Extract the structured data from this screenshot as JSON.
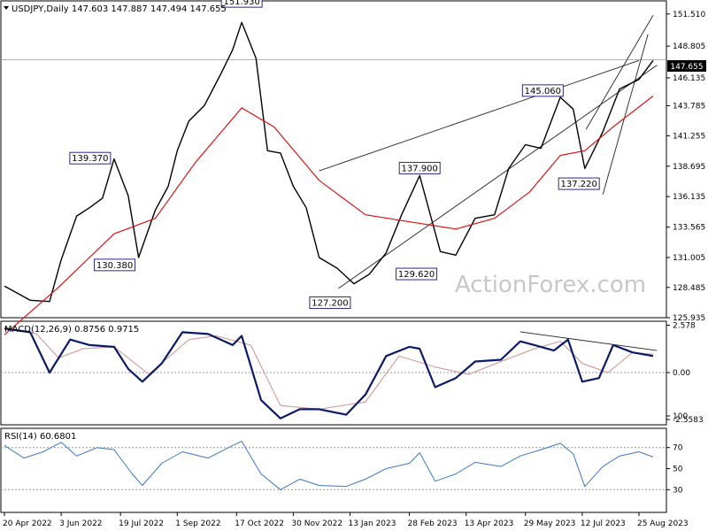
{
  "chart_data": [
    {
      "type": "line",
      "panel": "price",
      "header": "USDJPY,Daily  147.603 147.887 147.494 147.655",
      "watermark": "ActionForex.com",
      "ylim": [
        125.935,
        152.24
      ],
      "yticks": [
        "151.510",
        "148.805",
        "146.135",
        "143.785",
        "141.255",
        "138.695",
        "136.135",
        "133.565",
        "131.005",
        "128.485",
        "125.935"
      ],
      "last_price": "147.655",
      "price_line": 147.655,
      "series": [
        {
          "role": "price",
          "color": "#000000",
          "x": [
            "2022-04-20",
            "2022-05-10",
            "2022-05-25",
            "2022-06-03",
            "2022-06-15",
            "2022-06-25",
            "2022-07-05",
            "2022-07-14",
            "2022-07-25",
            "2022-08-02",
            "2022-08-15",
            "2022-08-25",
            "2022-09-01",
            "2022-09-10",
            "2022-09-22",
            "2022-10-05",
            "2022-10-14",
            "2022-10-21",
            "2022-11-01",
            "2022-11-10",
            "2022-11-20",
            "2022-11-30",
            "2022-12-10",
            "2022-12-20",
            "2023-01-03",
            "2023-01-16",
            "2023-01-28",
            "2023-02-10",
            "2023-02-22",
            "2023-03-08",
            "2023-03-24",
            "2023-04-05",
            "2023-04-20",
            "2023-05-05",
            "2023-05-16",
            "2023-05-29",
            "2023-06-10",
            "2023-06-25",
            "2023-07-05",
            "2023-07-14",
            "2023-07-28",
            "2023-08-10",
            "2023-08-25",
            "2023-09-05"
          ],
          "values": [
            128.6,
            127.4,
            127.3,
            130.8,
            134.5,
            135.2,
            136.0,
            139.3,
            136.2,
            131.0,
            135.0,
            137.0,
            140.0,
            142.5,
            143.8,
            146.5,
            148.5,
            150.8,
            147.8,
            140.0,
            139.8,
            137.0,
            135.2,
            131.0,
            130.1,
            128.8,
            129.6,
            131.4,
            134.6,
            137.9,
            131.5,
            131.2,
            134.3,
            134.6,
            138.5,
            140.5,
            140.2,
            144.5,
            143.5,
            138.5,
            141.6,
            145.2,
            146.0,
            147.6
          ]
        }
      ],
      "moving_average": {
        "color": "#dd1111",
        "x": [
          "2022-04-20",
          "2022-06-01",
          "2022-07-14",
          "2022-08-15",
          "2022-09-15",
          "2022-10-21",
          "2022-11-15",
          "2022-12-20",
          "2023-01-25",
          "2023-03-01",
          "2023-04-05",
          "2023-05-05",
          "2023-06-01",
          "2023-06-25",
          "2023-07-14",
          "2023-08-05",
          "2023-09-05"
        ],
        "values": [
          124.5,
          128.5,
          133.0,
          134.3,
          139.0,
          143.6,
          142.0,
          137.5,
          134.6,
          134.0,
          133.4,
          134.3,
          136.5,
          139.6,
          140.0,
          142.0,
          144.6
        ]
      },
      "annotations": [
        {
          "text": "151.930",
          "x": "2022-10-21",
          "y": 151.93
        },
        {
          "text": "139.370",
          "x": "2022-07-14",
          "y": 139.37
        },
        {
          "text": "130.380",
          "x": "2022-08-02",
          "y": 130.38
        },
        {
          "text": "127.200",
          "x": "2023-01-16",
          "y": 127.2
        },
        {
          "text": "137.900",
          "x": "2023-03-08",
          "y": 137.9
        },
        {
          "text": "129.620",
          "x": "2023-03-24",
          "y": 129.62
        },
        {
          "text": "145.060",
          "x": "2023-06-30",
          "y": 145.06
        },
        {
          "text": "137.220",
          "x": "2023-07-28",
          "y": 137.22
        }
      ]
    },
    {
      "type": "line",
      "panel": "macd",
      "header": "MACD(12,26,9) 0.8756 0.9715",
      "ylim": [
        -2.8,
        2.7
      ],
      "yticks": [
        "2.578",
        "0.00",
        "-2.5583"
      ],
      "zero_line": 0,
      "series": [
        {
          "role": "macd",
          "color": "#0a1a6e",
          "x": [
            "2022-04-20",
            "2022-05-10",
            "2022-05-25",
            "2022-06-10",
            "2022-06-25",
            "2022-07-14",
            "2022-07-25",
            "2022-08-05",
            "2022-08-20",
            "2022-09-05",
            "2022-09-25",
            "2022-10-14",
            "2022-10-21",
            "2022-11-05",
            "2022-11-20",
            "2022-12-05",
            "2022-12-20",
            "2023-01-10",
            "2023-01-25",
            "2023-02-10",
            "2023-02-28",
            "2023-03-08",
            "2023-03-20",
            "2023-04-05",
            "2023-04-20",
            "2023-05-10",
            "2023-05-25",
            "2023-06-05",
            "2023-06-20",
            "2023-07-01",
            "2023-07-12",
            "2023-07-25",
            "2023-08-05",
            "2023-08-20",
            "2023-09-05"
          ],
          "values": [
            2.4,
            2.2,
            0.0,
            1.8,
            1.5,
            1.4,
            0.2,
            -0.5,
            0.5,
            2.2,
            2.1,
            1.5,
            2.0,
            -1.5,
            -2.5,
            -2.0,
            -2.0,
            -2.3,
            -1.2,
            0.9,
            1.4,
            1.3,
            -0.8,
            -0.3,
            0.6,
            0.7,
            1.7,
            1.5,
            1.2,
            1.8,
            -0.5,
            -0.3,
            1.5,
            1.1,
            0.9
          ]
        },
        {
          "role": "signal",
          "color": "#d09090",
          "x": [
            "2022-04-20",
            "2022-05-15",
            "2022-06-01",
            "2022-06-20",
            "2022-07-14",
            "2022-08-10",
            "2022-09-10",
            "2022-10-01",
            "2022-10-28",
            "2022-11-20",
            "2022-12-20",
            "2023-01-25",
            "2023-02-20",
            "2023-03-20",
            "2023-04-15",
            "2023-05-10",
            "2023-06-05",
            "2023-06-25",
            "2023-07-12",
            "2023-08-01",
            "2023-08-20",
            "2023-09-05"
          ],
          "values": [
            2.4,
            2.1,
            0.8,
            1.3,
            1.4,
            -0.1,
            1.8,
            2.0,
            1.5,
            -1.8,
            -2.0,
            -1.6,
            0.9,
            0.3,
            -0.1,
            0.6,
            1.3,
            1.7,
            0.5,
            0.0,
            1.1,
            1.0
          ]
        }
      ],
      "trendline": {
        "x": [
          "2023-05-25",
          "2023-09-08"
        ],
        "y": [
          2.22,
          1.2
        ]
      }
    },
    {
      "type": "line",
      "panel": "rsi",
      "header": "RSI(14) 60.6801",
      "ylim": [
        0,
        100
      ],
      "yticks": [
        "100",
        "70",
        "50",
        "30"
      ],
      "levels": [
        70,
        30
      ],
      "series": [
        {
          "role": "rsi",
          "color": "#3a78c8",
          "x": [
            "2022-04-20",
            "2022-05-05",
            "2022-05-20",
            "2022-06-03",
            "2022-06-15",
            "2022-07-01",
            "2022-07-14",
            "2022-07-28",
            "2022-08-05",
            "2022-08-20",
            "2022-09-05",
            "2022-09-25",
            "2022-10-14",
            "2022-10-21",
            "2022-11-05",
            "2022-11-20",
            "2022-12-05",
            "2022-12-20",
            "2023-01-10",
            "2023-01-25",
            "2023-02-10",
            "2023-02-28",
            "2023-03-08",
            "2023-03-20",
            "2023-04-05",
            "2023-04-20",
            "2023-05-10",
            "2023-05-25",
            "2023-06-10",
            "2023-06-25",
            "2023-07-05",
            "2023-07-14",
            "2023-07-28",
            "2023-08-10",
            "2023-08-25",
            "2023-09-05"
          ],
          "values": [
            72,
            60,
            66,
            75,
            62,
            70,
            68,
            45,
            34,
            55,
            66,
            60,
            72,
            76,
            45,
            30,
            40,
            34,
            33,
            40,
            50,
            55,
            65,
            38,
            45,
            56,
            52,
            62,
            68,
            74,
            64,
            33,
            52,
            62,
            66,
            61
          ]
        }
      ]
    }
  ],
  "x_axis": {
    "ticks": [
      "20 Apr 2022",
      "3 Jun 2022",
      "19 Jul 2022",
      "1 Sep 2022",
      "17 Oct 2022",
      "30 Nov 2022",
      "13 Jan 2023",
      "28 Feb 2023",
      "13 Apr 2023",
      "29 May 2023",
      "12 Jul 2023",
      "25 Aug 2023"
    ],
    "tick_dates": [
      "2022-04-20",
      "2022-06-03",
      "2022-07-19",
      "2022-09-01",
      "2022-10-17",
      "2022-11-30",
      "2023-01-13",
      "2023-02-28",
      "2023-04-13",
      "2023-05-29",
      "2023-07-12",
      "2023-08-25"
    ]
  }
}
